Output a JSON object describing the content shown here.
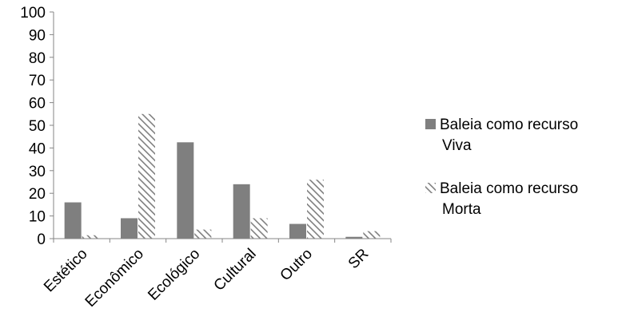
{
  "chart_data": {
    "type": "bar",
    "categories": [
      "Estético",
      "Econômico",
      "Ecológico",
      "Cultural",
      "Outro",
      "SR"
    ],
    "series": [
      {
        "name": "Baleia como recurso Viva",
        "name_lines": [
          "Baleia como recurso",
          "Viva"
        ],
        "values": [
          16,
          9,
          42.5,
          24,
          6.5,
          0.8
        ],
        "color": "#7f7f7f",
        "fill": "solid"
      },
      {
        "name": "Baleia como recurso Morta",
        "name_lines": [
          "Baleia como recurso",
          "Morta"
        ],
        "values": [
          1.5,
          55,
          4,
          9,
          26,
          3.3
        ],
        "color": "#7f7f7f",
        "fill": "diagonal-hatch"
      }
    ],
    "ylim": [
      0,
      100
    ],
    "y_ticks": [
      "0",
      "10",
      "20",
      "30",
      "40",
      "50",
      "60",
      "70",
      "80",
      "90",
      "100"
    ],
    "xlabel": "",
    "ylabel": "",
    "title": "",
    "legend_position": "right",
    "grid": false
  }
}
